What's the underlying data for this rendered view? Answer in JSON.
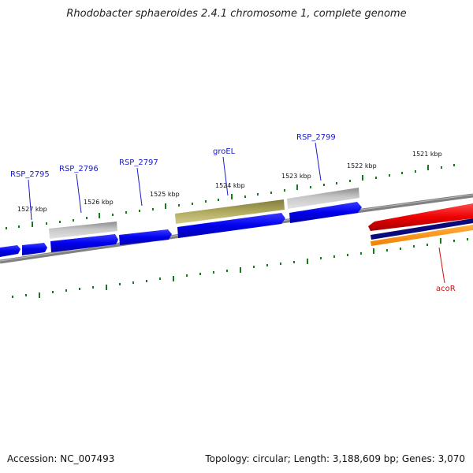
{
  "title": "Rhodobacter sphaeroides 2.4.1 chromosome 1, complete genome",
  "footer": {
    "accession": "Accession: NC_007493",
    "summary": "Topology: circular; Length: 3,188,609 bp; Genes: 3,070"
  },
  "scale": {
    "labels": [
      "1521 kbp",
      "1522 kbp",
      "1523 kbp",
      "1524 kbp",
      "1525 kbp",
      "1526 kbp",
      "1527 kbp"
    ]
  },
  "genes": {
    "labels": [
      "RSP_2795",
      "RSP_2796",
      "RSP_2797",
      "groEL",
      "RSP_2799",
      "acoR"
    ]
  },
  "colors": {
    "cds_blue": "#0a0aee",
    "cds_gray": "#a9a9a9",
    "gene_olive": "#a8a25c",
    "cds_red": "#ee0a0a",
    "navy": "#0a0a7a",
    "orange": "#ff9911",
    "backbone": "#808080",
    "tick": "#1a7a1a",
    "label_blue": "#1a1acc",
    "label_red": "#cc1111"
  }
}
